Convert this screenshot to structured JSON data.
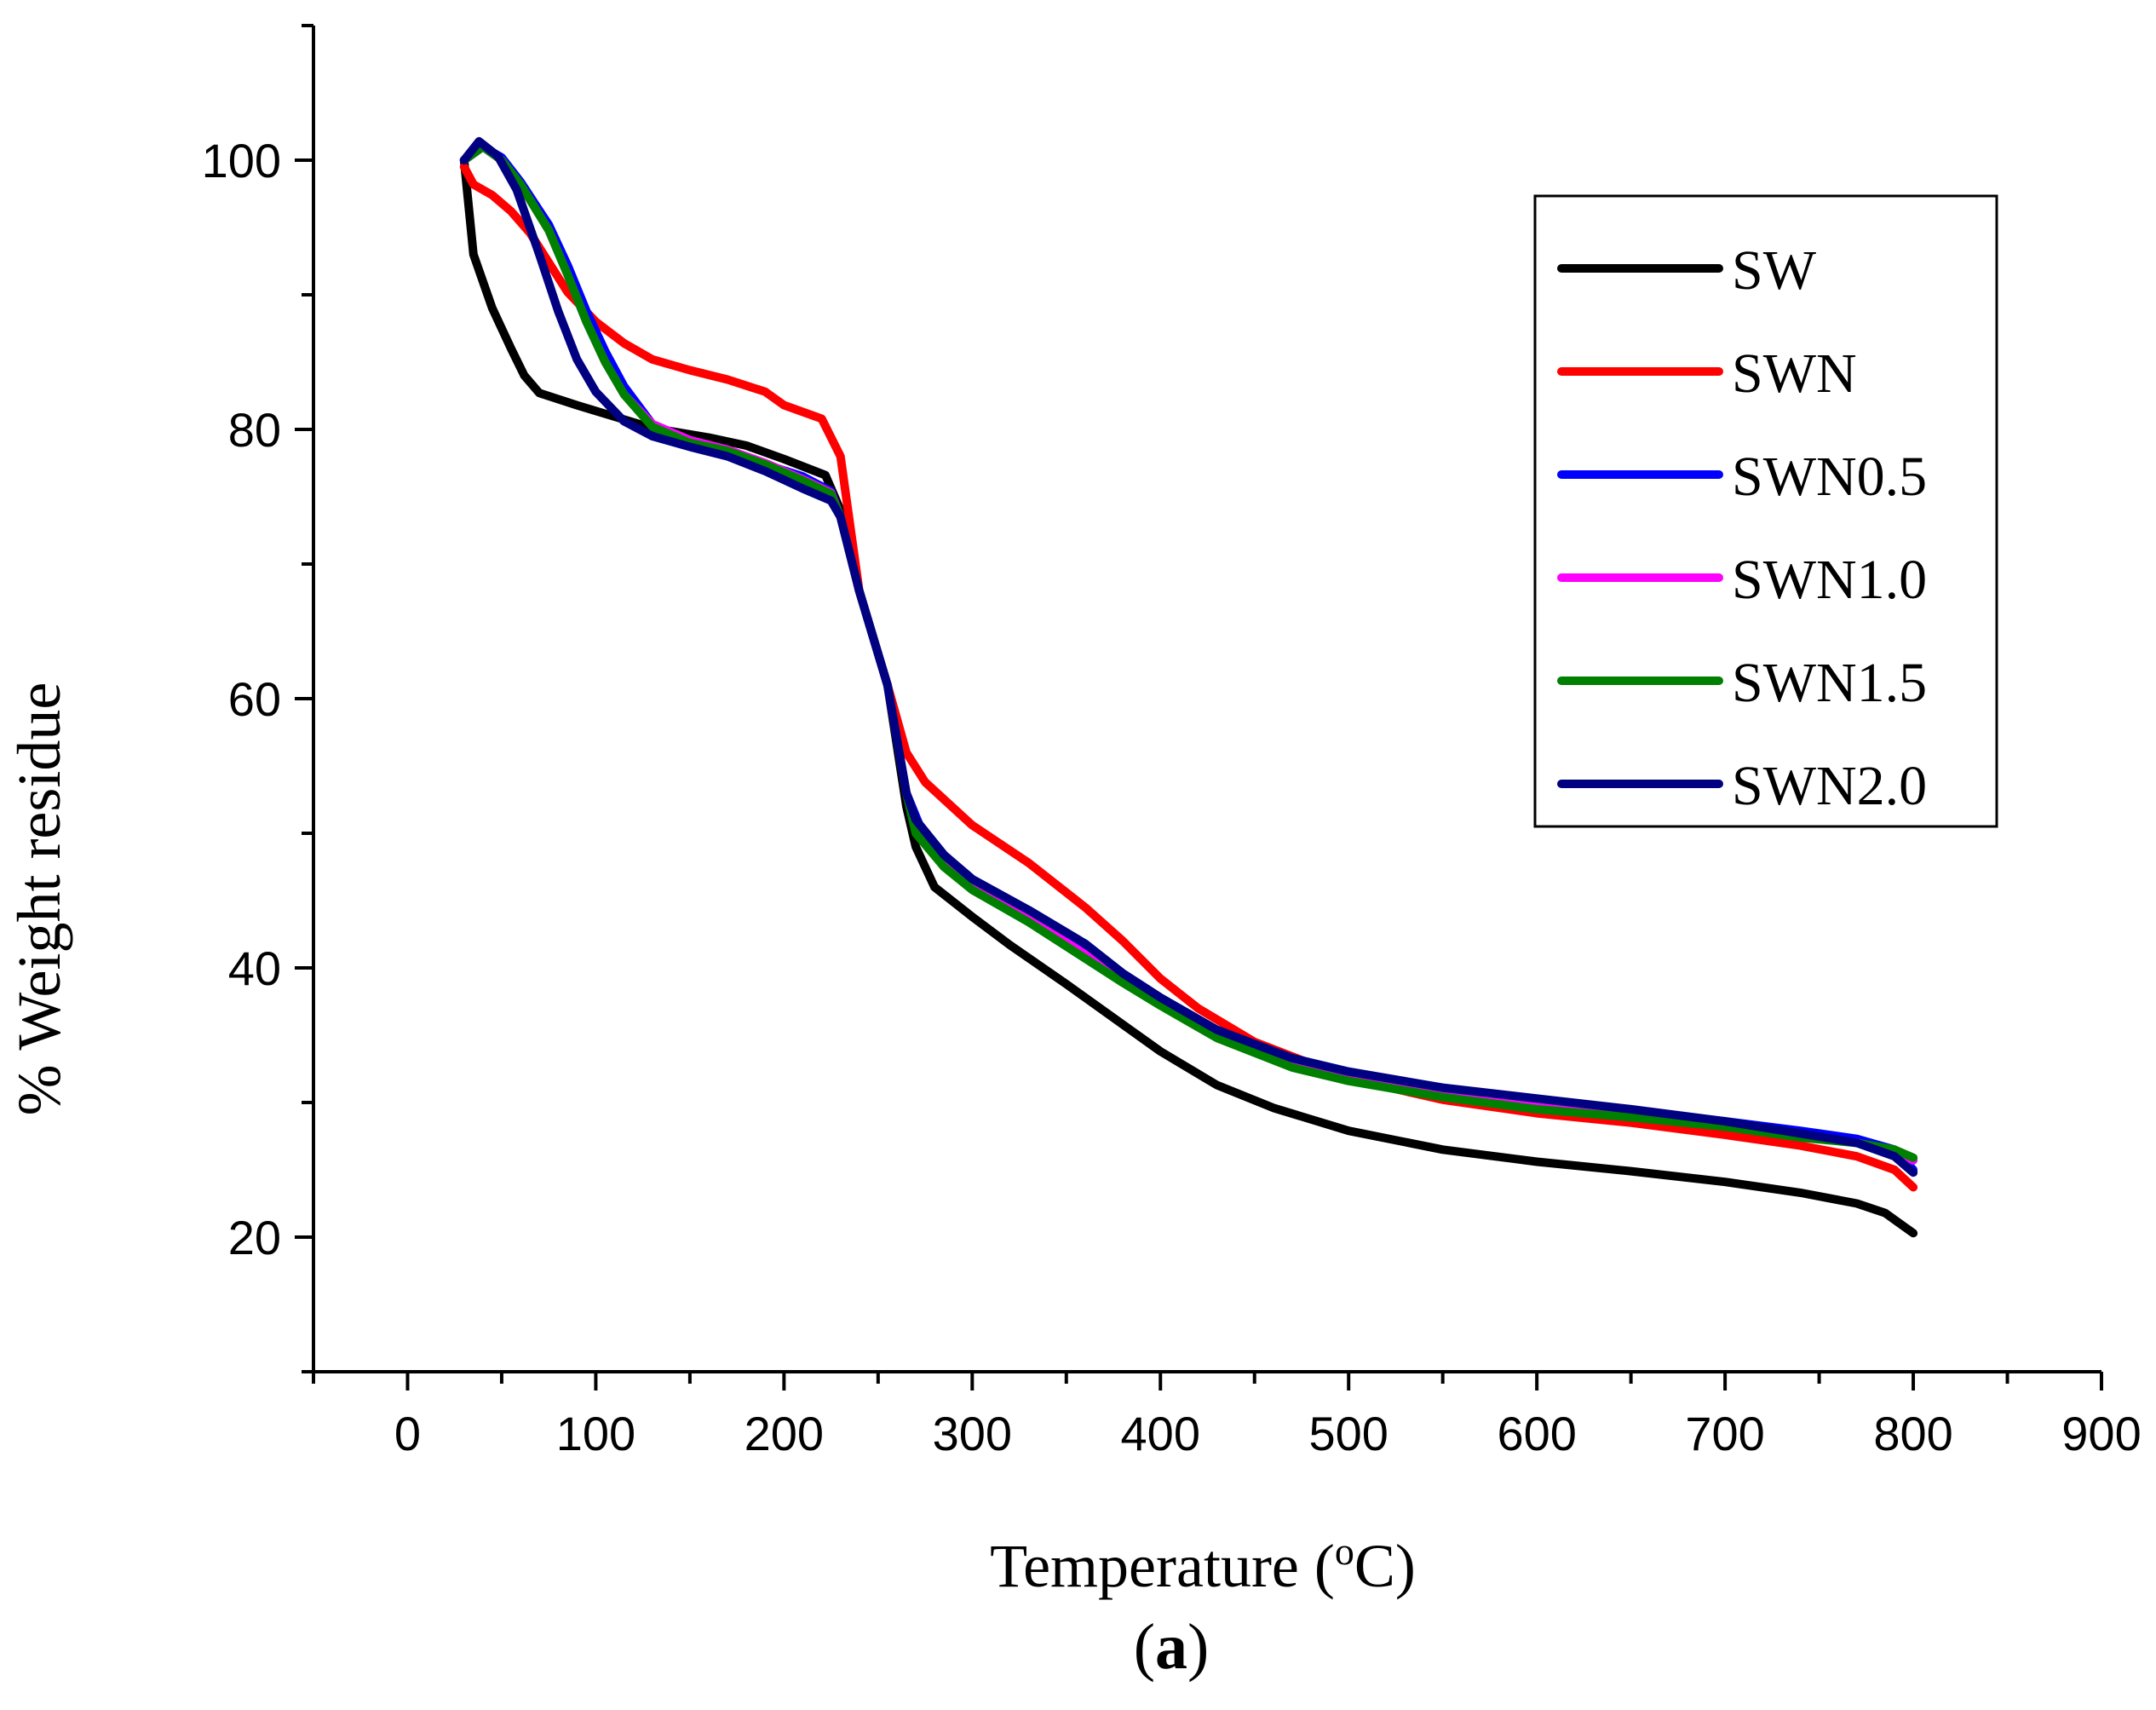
{
  "chart_data": {
    "type": "line",
    "xlabel_main": "Temperature (",
    "xlabel_sup": "o",
    "xlabel_end": "C)",
    "ylabel": "% Weight residue",
    "panel_label_open": "(",
    "panel_label_letter": "a",
    "panel_label_close": ")",
    "xlim": [
      -50,
      900
    ],
    "ylim": [
      10,
      110
    ],
    "xticks": [
      0,
      100,
      200,
      300,
      400,
      500,
      600,
      700,
      800,
      900
    ],
    "yticks": [
      20,
      40,
      60,
      80,
      100
    ],
    "legend_position": "top-right",
    "series": [
      {
        "name": "SW",
        "color": "#000000",
        "points": [
          [
            30,
            100
          ],
          [
            35,
            93
          ],
          [
            45,
            89
          ],
          [
            55,
            86
          ],
          [
            62,
            84
          ],
          [
            70,
            82.7
          ],
          [
            90,
            81.8
          ],
          [
            130,
            80.1
          ],
          [
            160,
            79.4
          ],
          [
            180,
            78.8
          ],
          [
            200,
            77.8
          ],
          [
            222,
            76.6
          ],
          [
            230,
            74
          ],
          [
            240,
            68
          ],
          [
            255,
            61
          ],
          [
            265,
            52
          ],
          [
            270,
            49
          ],
          [
            280,
            46
          ],
          [
            300,
            43.8
          ],
          [
            320,
            41.7
          ],
          [
            350,
            38.8
          ],
          [
            380,
            35.8
          ],
          [
            400,
            33.8
          ],
          [
            430,
            31.3
          ],
          [
            460,
            29.6
          ],
          [
            500,
            27.9
          ],
          [
            550,
            26.5
          ],
          [
            600,
            25.6
          ],
          [
            650,
            24.9
          ],
          [
            700,
            24.1
          ],
          [
            740,
            23.3
          ],
          [
            770,
            22.5
          ],
          [
            785,
            21.8
          ],
          [
            795,
            20.8
          ],
          [
            800,
            20.3
          ]
        ]
      },
      {
        "name": "SWN",
        "color": "#ff0000",
        "points": [
          [
            30,
            99.5
          ],
          [
            35,
            98.2
          ],
          [
            45,
            97.4
          ],
          [
            55,
            96.2
          ],
          [
            65,
            94.6
          ],
          [
            75,
            92.4
          ],
          [
            85,
            90.2
          ],
          [
            100,
            88
          ],
          [
            115,
            86.4
          ],
          [
            130,
            85.2
          ],
          [
            150,
            84.4
          ],
          [
            170,
            83.7
          ],
          [
            190,
            82.8
          ],
          [
            200,
            81.8
          ],
          [
            220,
            80.8
          ],
          [
            230,
            78
          ],
          [
            240,
            68
          ],
          [
            255,
            61
          ],
          [
            265,
            56
          ],
          [
            275,
            53.8
          ],
          [
            300,
            50.6
          ],
          [
            330,
            47.8
          ],
          [
            360,
            44.5
          ],
          [
            380,
            42
          ],
          [
            400,
            39.2
          ],
          [
            420,
            37
          ],
          [
            450,
            34.5
          ],
          [
            500,
            31.8
          ],
          [
            550,
            30.2
          ],
          [
            600,
            29.2
          ],
          [
            650,
            28.5
          ],
          [
            700,
            27.6
          ],
          [
            740,
            26.8
          ],
          [
            770,
            26
          ],
          [
            790,
            25
          ],
          [
            800,
            23.7
          ]
        ]
      },
      {
        "name": "SWN0.5",
        "color": "#0000ff",
        "points": [
          [
            30,
            100
          ],
          [
            40,
            101
          ],
          [
            50,
            100.2
          ],
          [
            60,
            98.4
          ],
          [
            75,
            95.2
          ],
          [
            85,
            92.2
          ],
          [
            95,
            88.8
          ],
          [
            105,
            85.8
          ],
          [
            115,
            83.2
          ],
          [
            130,
            80.4
          ],
          [
            150,
            79.2
          ],
          [
            170,
            78.4
          ],
          [
            190,
            77.4
          ],
          [
            210,
            76.5
          ],
          [
            225,
            75.4
          ],
          [
            230,
            73.5
          ],
          [
            240,
            68
          ],
          [
            255,
            61
          ],
          [
            265,
            53
          ],
          [
            272,
            50.6
          ],
          [
            285,
            48.2
          ],
          [
            300,
            46.4
          ],
          [
            330,
            44.1
          ],
          [
            360,
            41.5
          ],
          [
            380,
            39.4
          ],
          [
            400,
            37.6
          ],
          [
            430,
            35.4
          ],
          [
            470,
            33.2
          ],
          [
            500,
            32.2
          ],
          [
            550,
            31
          ],
          [
            600,
            30.2
          ],
          [
            650,
            29.4
          ],
          [
            700,
            28.6
          ],
          [
            740,
            27.9
          ],
          [
            770,
            27.3
          ],
          [
            790,
            26.5
          ],
          [
            800,
            25
          ]
        ]
      },
      {
        "name": "SWN1.0",
        "color": "#ff00ff",
        "points": [
          [
            30,
            100
          ],
          [
            40,
            101
          ],
          [
            50,
            100
          ],
          [
            60,
            98.2
          ],
          [
            75,
            94.8
          ],
          [
            85,
            91.5
          ],
          [
            95,
            88
          ],
          [
            105,
            85
          ],
          [
            115,
            82.6
          ],
          [
            130,
            80.4
          ],
          [
            150,
            79.2
          ],
          [
            170,
            78.5
          ],
          [
            190,
            77.5
          ],
          [
            210,
            76.3
          ],
          [
            225,
            75.3
          ],
          [
            230,
            73.5
          ],
          [
            240,
            68
          ],
          [
            255,
            61
          ],
          [
            265,
            53
          ],
          [
            270,
            50.2
          ],
          [
            285,
            47.8
          ],
          [
            300,
            46
          ],
          [
            330,
            43.7
          ],
          [
            360,
            41
          ],
          [
            380,
            39.1
          ],
          [
            400,
            37.4
          ],
          [
            430,
            35
          ],
          [
            470,
            32.9
          ],
          [
            500,
            31.9
          ],
          [
            550,
            30.6
          ],
          [
            600,
            29.7
          ],
          [
            650,
            29
          ],
          [
            700,
            28.3
          ],
          [
            740,
            27.5
          ],
          [
            770,
            27
          ],
          [
            790,
            26.4
          ],
          [
            800,
            25.7
          ]
        ]
      },
      {
        "name": "SWN1.5",
        "color": "#008000",
        "points": [
          [
            30,
            100
          ],
          [
            40,
            101
          ],
          [
            50,
            100
          ],
          [
            60,
            98.2
          ],
          [
            75,
            94.8
          ],
          [
            85,
            91.5
          ],
          [
            95,
            88
          ],
          [
            105,
            85
          ],
          [
            115,
            82.6
          ],
          [
            130,
            80.2
          ],
          [
            150,
            79
          ],
          [
            170,
            78.4
          ],
          [
            190,
            77.4
          ],
          [
            210,
            76.2
          ],
          [
            225,
            75.2
          ],
          [
            230,
            73.5
          ],
          [
            240,
            68
          ],
          [
            255,
            61
          ],
          [
            265,
            53
          ],
          [
            270,
            50
          ],
          [
            285,
            47.5
          ],
          [
            300,
            45.8
          ],
          [
            330,
            43.4
          ],
          [
            360,
            40.7
          ],
          [
            380,
            38.9
          ],
          [
            400,
            37.2
          ],
          [
            430,
            34.8
          ],
          [
            470,
            32.6
          ],
          [
            500,
            31.6
          ],
          [
            550,
            30.4
          ],
          [
            600,
            29.5
          ],
          [
            650,
            28.9
          ],
          [
            700,
            28.2
          ],
          [
            740,
            27.4
          ],
          [
            770,
            27
          ],
          [
            790,
            26.5
          ],
          [
            800,
            25.9
          ]
        ]
      },
      {
        "name": "SWN2.0",
        "color": "#000080",
        "points": [
          [
            30,
            100
          ],
          [
            38,
            101.4
          ],
          [
            48,
            100.3
          ],
          [
            58,
            97.8
          ],
          [
            70,
            93
          ],
          [
            80,
            88.8
          ],
          [
            90,
            85.2
          ],
          [
            100,
            82.8
          ],
          [
            115,
            80.6
          ],
          [
            130,
            79.5
          ],
          [
            150,
            78.7
          ],
          [
            170,
            78
          ],
          [
            190,
            76.9
          ],
          [
            210,
            75.6
          ],
          [
            225,
            74.7
          ],
          [
            230,
            73.5
          ],
          [
            240,
            68
          ],
          [
            255,
            61
          ],
          [
            265,
            53
          ],
          [
            270,
            51
          ],
          [
            285,
            48.4
          ],
          [
            300,
            46.6
          ],
          [
            330,
            44.3
          ],
          [
            360,
            41.8
          ],
          [
            380,
            39.6
          ],
          [
            400,
            37.8
          ],
          [
            430,
            35.4
          ],
          [
            470,
            33.3
          ],
          [
            500,
            32.3
          ],
          [
            550,
            31.1
          ],
          [
            600,
            30.3
          ],
          [
            650,
            29.5
          ],
          [
            700,
            28.6
          ],
          [
            740,
            27.7
          ],
          [
            770,
            27
          ],
          [
            790,
            26
          ],
          [
            800,
            24.8
          ]
        ]
      }
    ]
  }
}
